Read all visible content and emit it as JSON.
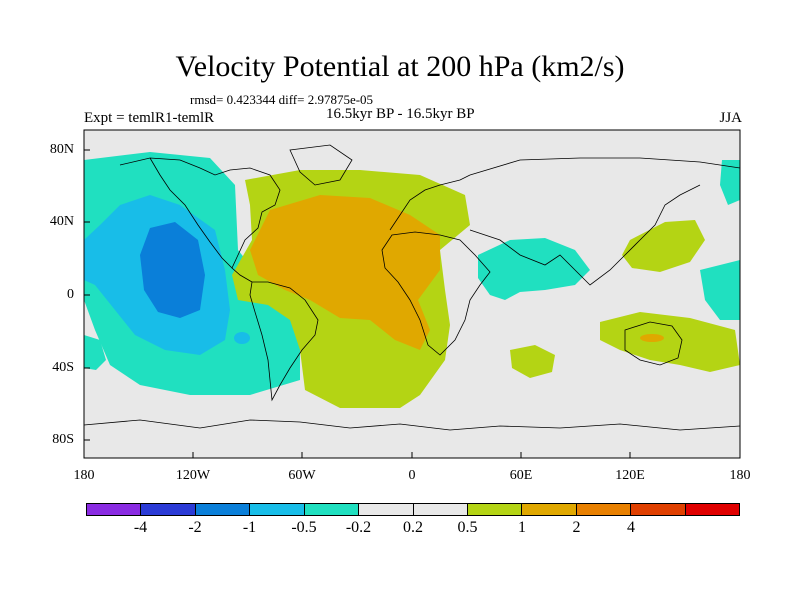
{
  "title": "Velocity Potential at 200 hPa (km2/s)",
  "stats": "rmsd= 0.423344 diff= 2.97875e-05",
  "experiment": "Expt = temlR1-temlR",
  "period": "16.5kyr BP - 16.5kyr BP",
  "season": "JJA",
  "lat_labels": [
    "80N",
    "40N",
    "0",
    "40S",
    "80S"
  ],
  "lon_labels": [
    "180",
    "120W",
    "60W",
    "0",
    "60E",
    "120E",
    "180"
  ],
  "colorbar": {
    "colors": [
      "#8a2be2",
      "#2b3bd6",
      "#0a7fd9",
      "#18bde8",
      "#20e0c0",
      "#e8e8e8",
      "#e8e8e8",
      "#b4d414",
      "#e0a800",
      "#e88000",
      "#e04000",
      "#e00000"
    ],
    "labels": [
      "-4",
      "-2",
      "-1",
      "-0.5",
      "-0.2",
      "0.2",
      "0.5",
      "1",
      "2",
      "4"
    ]
  },
  "field_colors": {
    "background": "#e8e8e8",
    "neg_weak": "#20e0c0",
    "neg_mod": "#18bde8",
    "neg_strong": "#0a7fd9",
    "pos_weak": "#b4d414",
    "pos_mod": "#e0a800",
    "pos_strong": "#e88000"
  }
}
